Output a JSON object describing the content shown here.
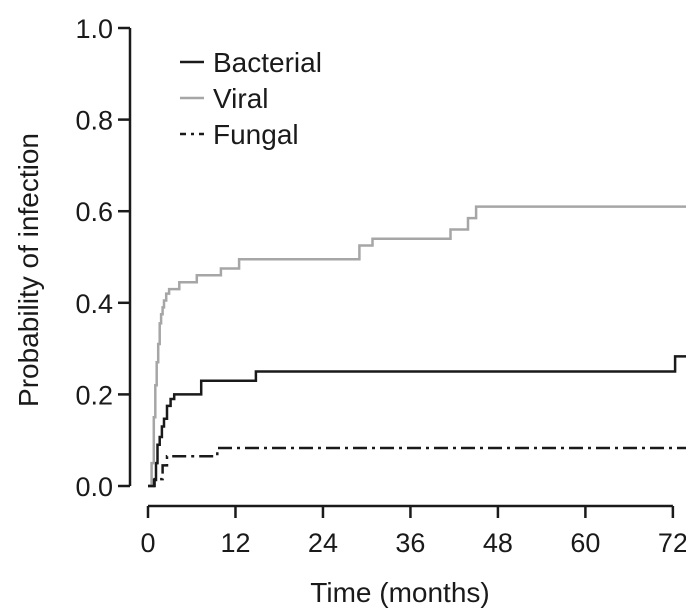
{
  "chart_data": {
    "type": "line",
    "title": "",
    "xlabel": "Time (months)",
    "ylabel": "Probability of infection",
    "xlim": [
      0,
      74
    ],
    "ylim": [
      0,
      1.0
    ],
    "xticks": [
      0,
      12,
      24,
      36,
      48,
      60,
      72
    ],
    "xtick_labels": [
      "0",
      "12",
      "24",
      "36",
      "48",
      "60",
      "72"
    ],
    "yticks": [
      0.0,
      0.2,
      0.4,
      0.6,
      0.8,
      1.0
    ],
    "ytick_labels": [
      "0.0",
      "0.2",
      "0.4",
      "0.6",
      "0.8",
      "1.0"
    ],
    "grid": false,
    "legend_position": "top-left",
    "series": [
      {
        "name": "Bacterial",
        "color": "#1a1a1a",
        "style": "solid",
        "x": [
          0,
          0.8,
          1.1,
          1.3,
          1.6,
          1.9,
          2.2,
          2.6,
          3.1,
          3.6,
          7.3,
          14.8,
          72.3,
          74
        ],
        "y": [
          0,
          0.013,
          0.05,
          0.09,
          0.107,
          0.13,
          0.147,
          0.175,
          0.19,
          0.2,
          0.23,
          0.25,
          0.283,
          0.283
        ]
      },
      {
        "name": "Viral",
        "color": "#a6a6a6",
        "style": "solid",
        "x": [
          0,
          0.5,
          0.8,
          1.0,
          1.2,
          1.4,
          1.6,
          1.8,
          2.0,
          2.2,
          2.5,
          2.9,
          4.3,
          6.2,
          6.7,
          10.0,
          12.5,
          29.0,
          30.8,
          41.5,
          43.9,
          45.0,
          74
        ],
        "y": [
          0,
          0.05,
          0.15,
          0.22,
          0.27,
          0.31,
          0.355,
          0.375,
          0.39,
          0.405,
          0.42,
          0.43,
          0.445,
          0.445,
          0.46,
          0.475,
          0.495,
          0.525,
          0.54,
          0.56,
          0.585,
          0.61,
          0.61
        ]
      },
      {
        "name": "Fungal",
        "color": "#1a1a1a",
        "style": "dashdot",
        "x": [
          0,
          0.9,
          1.6,
          2.0,
          2.6,
          9.5,
          74
        ],
        "y": [
          0,
          0.015,
          0.015,
          0.045,
          0.065,
          0.083,
          0.083
        ]
      }
    ]
  }
}
